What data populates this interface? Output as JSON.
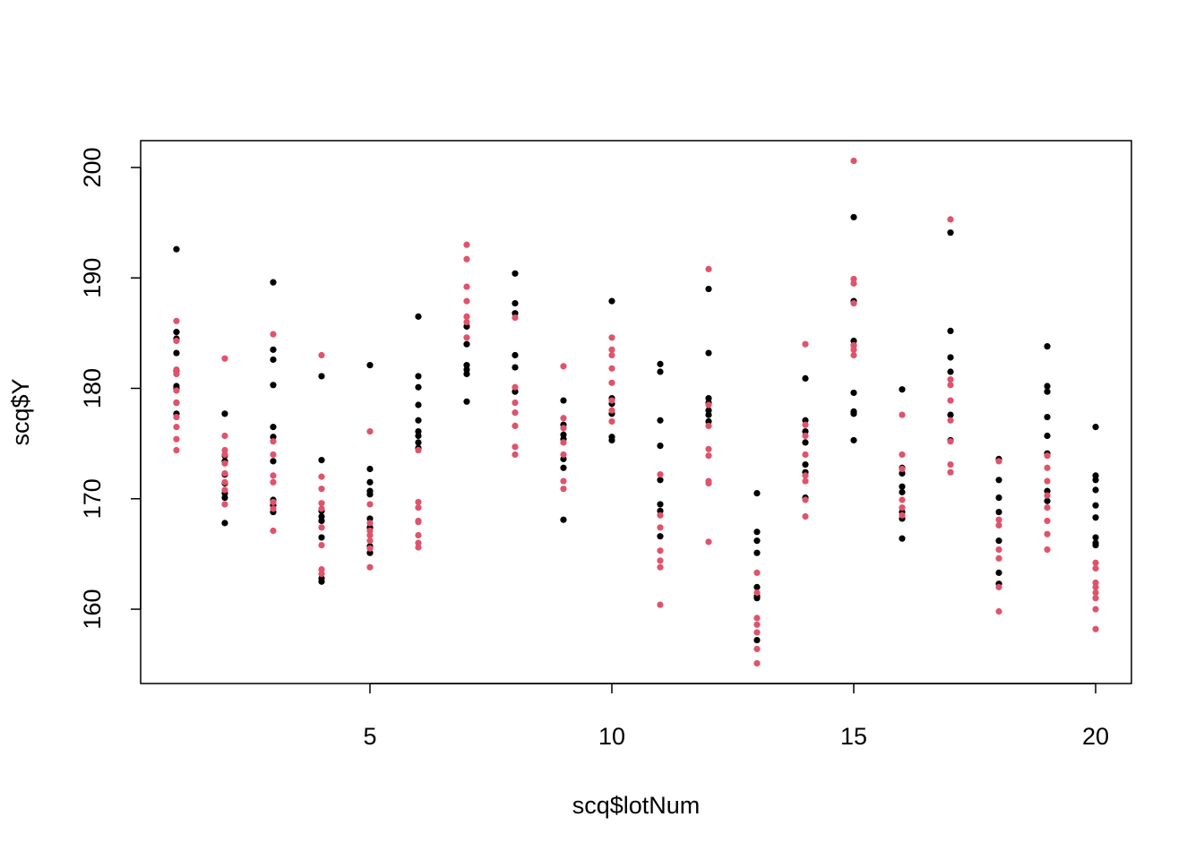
{
  "chart_data": {
    "type": "scatter",
    "xlabel": "scq$lotNum",
    "ylabel": "scq$Y",
    "xlim": [
      0.26,
      20.74
    ],
    "ylim": [
      153.27,
      202.43
    ],
    "xticks": [
      5,
      10,
      15,
      20
    ],
    "yticks": [
      160,
      170,
      180,
      190,
      200
    ],
    "series": [
      {
        "color": "#000000",
        "x": [
          1,
          1,
          1,
          1,
          1,
          1,
          1,
          1,
          1,
          2,
          2,
          2,
          2,
          2,
          2,
          2,
          2,
          3,
          3,
          3,
          3,
          3,
          3,
          3,
          3,
          3,
          3,
          4,
          4,
          4,
          4,
          4,
          4,
          4,
          4,
          5,
          5,
          5,
          5,
          5,
          5,
          5,
          5,
          5,
          6,
          6,
          6,
          6,
          6,
          6,
          6,
          6,
          6,
          7,
          7,
          7,
          7,
          7,
          7,
          8,
          8,
          8,
          8,
          8,
          8,
          9,
          9,
          9,
          9,
          9,
          9,
          9,
          10,
          10,
          10,
          10,
          10,
          10,
          11,
          11,
          11,
          11,
          11,
          11,
          11,
          11,
          12,
          12,
          12,
          12,
          12,
          12,
          12,
          13,
          13,
          13,
          13,
          13,
          13,
          13,
          13,
          14,
          14,
          14,
          14,
          14,
          14,
          14,
          15,
          15,
          15,
          15,
          15,
          15,
          15,
          15,
          16,
          16,
          16,
          16,
          16,
          16,
          16,
          16,
          17,
          17,
          17,
          17,
          17,
          17,
          18,
          18,
          18,
          18,
          18,
          18,
          18,
          19,
          19,
          19,
          19,
          19,
          19,
          19,
          19,
          20,
          20,
          20,
          20,
          20,
          20,
          20,
          20,
          20
        ],
        "values": [
          192.6,
          185.1,
          184.5,
          183.2,
          181.6,
          180.2,
          180.0,
          178.7,
          177.7,
          177.7,
          173.9,
          173.4,
          172.2,
          171.4,
          170.5,
          170.1,
          167.8,
          189.6,
          183.5,
          182.6,
          180.3,
          176.5,
          175.6,
          173.4,
          169.9,
          169.4,
          168.8,
          181.1,
          173.5,
          168.9,
          168.4,
          168.0,
          166.5,
          162.8,
          162.5,
          182.1,
          172.7,
          171.5,
          170.7,
          170.4,
          168.2,
          167.4,
          165.7,
          165.1,
          186.5,
          181.1,
          180.1,
          178.5,
          177.1,
          176.1,
          175.7,
          175.1,
          174.6,
          185.6,
          184.0,
          182.1,
          181.7,
          181.3,
          178.8,
          190.4,
          187.7,
          186.8,
          183.0,
          181.9,
          179.7,
          178.9,
          176.7,
          175.8,
          175.4,
          173.6,
          172.8,
          168.1,
          187.9,
          179.1,
          178.6,
          177.7,
          175.6,
          175.3,
          182.2,
          181.5,
          177.1,
          174.8,
          171.7,
          169.5,
          168.9,
          166.6,
          189.0,
          183.2,
          179.1,
          178.7,
          178.0,
          177.6,
          177.0,
          170.5,
          167.0,
          166.2,
          165.1,
          162.0,
          161.2,
          161.0,
          157.2,
          180.9,
          177.1,
          176.1,
          175.1,
          173.1,
          172.4,
          170.1,
          195.5,
          187.9,
          184.3,
          183.9,
          179.6,
          177.9,
          177.7,
          175.3,
          179.9,
          172.8,
          172.3,
          171.1,
          170.6,
          168.8,
          168.2,
          166.4,
          194.1,
          185.2,
          182.8,
          181.5,
          177.6,
          175.3,
          173.6,
          171.7,
          170.1,
          168.8,
          166.2,
          163.3,
          162.3,
          183.8,
          180.2,
          179.7,
          177.4,
          175.7,
          174.1,
          170.7,
          169.8,
          176.5,
          172.1,
          171.7,
          170.8,
          169.4,
          168.3,
          166.5,
          166.0,
          165.8
        ]
      },
      {
        "color": "#DF536B",
        "x": [
          1,
          1,
          1,
          1,
          1,
          1,
          1,
          1,
          1,
          1,
          2,
          2,
          2,
          2,
          2,
          2,
          2,
          2,
          2,
          3,
          3,
          3,
          3,
          3,
          3,
          3,
          3,
          4,
          4,
          4,
          4,
          4,
          4,
          4,
          4,
          4,
          5,
          5,
          5,
          5,
          5,
          5,
          5,
          5,
          6,
          6,
          6,
          6,
          6,
          6,
          6,
          6,
          7,
          7,
          7,
          7,
          7,
          7,
          7,
          8,
          8,
          8,
          8,
          8,
          8,
          8,
          9,
          9,
          9,
          9,
          9,
          9,
          9,
          10,
          10,
          10,
          10,
          10,
          10,
          10,
          10,
          11,
          11,
          11,
          11,
          11,
          11,
          11,
          12,
          12,
          12,
          12,
          12,
          12,
          12,
          12,
          13,
          13,
          13,
          13,
          13,
          13,
          13,
          14,
          14,
          14,
          14,
          14,
          14,
          14,
          14,
          15,
          15,
          15,
          15,
          15,
          15,
          15,
          16,
          16,
          16,
          16,
          16,
          16,
          17,
          17,
          17,
          17,
          17,
          17,
          17,
          17,
          18,
          18,
          18,
          18,
          18,
          18,
          18,
          19,
          19,
          19,
          19,
          19,
          19,
          19,
          19,
          20,
          20,
          20,
          20,
          20,
          20,
          20,
          20
        ],
        "values": [
          186.1,
          184.3,
          181.7,
          181.3,
          179.8,
          178.7,
          177.4,
          176.5,
          175.4,
          174.4,
          182.7,
          175.7,
          174.4,
          174.0,
          173.2,
          172.3,
          171.5,
          170.8,
          169.5,
          184.9,
          175.2,
          174.0,
          172.1,
          171.5,
          169.7,
          169.1,
          167.1,
          183.0,
          172.0,
          170.9,
          169.6,
          169.1,
          167.4,
          165.8,
          163.6,
          163.2,
          176.1,
          169.5,
          167.8,
          167.1,
          166.7,
          166.2,
          165.5,
          163.8,
          174.4,
          169.7,
          169.2,
          168.0,
          167.9,
          166.7,
          166.0,
          165.6,
          193.0,
          191.7,
          189.2,
          187.9,
          186.5,
          186.0,
          184.6,
          186.4,
          180.1,
          178.7,
          177.8,
          176.6,
          174.7,
          174.0,
          182.0,
          177.3,
          176.4,
          175.1,
          174.0,
          171.6,
          170.9,
          184.6,
          183.5,
          183.0,
          181.8,
          180.5,
          178.9,
          178.0,
          177.0,
          172.2,
          168.5,
          167.4,
          165.3,
          164.4,
          163.8,
          160.4,
          190.8,
          178.5,
          176.6,
          174.5,
          173.9,
          171.6,
          171.4,
          166.1,
          163.3,
          161.5,
          159.2,
          158.6,
          157.9,
          156.4,
          155.1,
          184.0,
          176.7,
          175.7,
          174.0,
          172.1,
          171.6,
          169.9,
          168.4,
          200.6,
          189.9,
          189.5,
          187.7,
          183.9,
          183.5,
          183.0,
          177.6,
          174.0,
          172.7,
          169.9,
          169.2,
          168.5,
          195.3,
          180.8,
          180.3,
          178.9,
          177.1,
          175.2,
          173.1,
          172.4,
          173.4,
          168.1,
          167.6,
          165.4,
          164.6,
          162.0,
          159.8,
          173.9,
          172.8,
          171.6,
          170.3,
          169.2,
          168.0,
          166.8,
          165.4,
          164.2,
          163.7,
          162.4,
          162.0,
          161.5,
          161.0,
          160.0,
          158.2
        ]
      }
    ]
  }
}
